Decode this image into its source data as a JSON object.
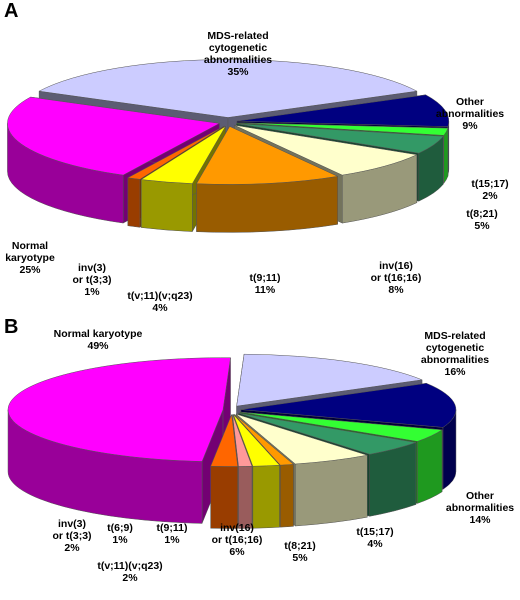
{
  "chart_data": [
    {
      "type": "pie3d",
      "panel": "A",
      "categories": [
        "MDS-related\ncytogenetic\nabnormalities",
        "Other\nabnormalities",
        "t(15;17)",
        "t(8;21)",
        "inv(16)\nor t(16;16)",
        "t(9;11)",
        "t(v;11)(v;q23)",
        "inv(3)\nor t(3;3)",
        "Normal\nkaryotype"
      ],
      "values": [
        35,
        9,
        2,
        5,
        8,
        11,
        4,
        1,
        25
      ],
      "value_labels": [
        "35%",
        "9%",
        "2%",
        "5%",
        "8%",
        "11%",
        "4%",
        "1%",
        "25%"
      ],
      "colors": [
        "#ccccff",
        "#000080",
        "#33ff33",
        "#339966",
        "#ffffcc",
        "#ff9900",
        "#ffff00",
        "#ff6600",
        "#ff00ff"
      ]
    },
    {
      "type": "pie3d",
      "panel": "B",
      "categories": [
        "MDS-related\ncytogenetic\nabnormalities",
        "Other\nabnormalities",
        "t(15;17)",
        "t(8;21)",
        "inv(16)\nor t(16;16)",
        "t(9;11)",
        "t(v;11)(v;q23)",
        "t(6;9)",
        "inv(3)\nor t(3;3)",
        "Normal karyotype"
      ],
      "values": [
        16,
        14,
        4,
        5,
        6,
        1,
        2,
        1,
        2,
        49
      ],
      "value_labels": [
        "16%",
        "14%",
        "4%",
        "5%",
        "6%",
        "1%",
        "2%",
        "1%",
        "2%",
        "49%"
      ],
      "colors": [
        "#ccccff",
        "#000080",
        "#33ff33",
        "#339966",
        "#ffffcc",
        "#ff9900",
        "#ffff00",
        "#ff9999",
        "#ff6600",
        "#ff00ff"
      ]
    }
  ]
}
